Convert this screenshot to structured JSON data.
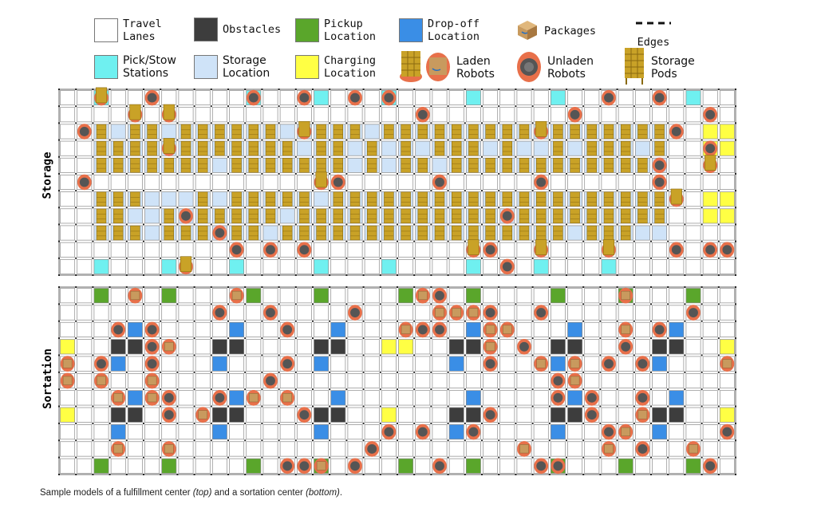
{
  "legend": {
    "items": [
      {
        "key": "travel-lanes",
        "label": "Travel\nLanes",
        "color": "#ffffff",
        "mono": true
      },
      {
        "key": "obstacles",
        "label": "Obstacles",
        "color": "#3d3d3d",
        "mono": true
      },
      {
        "key": "pickup",
        "label": "Pickup\nLocation",
        "color": "#5aa62b",
        "mono": true
      },
      {
        "key": "dropoff",
        "label": "Drop-off\nLocation",
        "color": "#3a8ee6",
        "mono": true
      },
      {
        "key": "packages",
        "label": "Packages",
        "icon": "package-icon",
        "mono": true
      },
      {
        "key": "edges",
        "label": "Edges",
        "icon": "edges-icon",
        "mono": true
      },
      {
        "key": "pick-stow",
        "label": "Pick/Stow\nStations",
        "color": "#6ff0f0",
        "mono": false
      },
      {
        "key": "storage",
        "label": "Storage\nLocation",
        "color": "#cfe3f8",
        "mono": false
      },
      {
        "key": "charging",
        "label": "Charging\nLocation",
        "color": "#ffff44",
        "mono": true
      },
      {
        "key": "laden",
        "label": "Laden\nRobots",
        "icon": "laden-robot-icon",
        "mono": false
      },
      {
        "key": "unladen",
        "label": "Unladen\nRobots",
        "icon": "unladen-robot-icon",
        "mono": false
      },
      {
        "key": "pods",
        "label": "Storage\nPods",
        "icon": "storage-pod-icon",
        "mono": false
      }
    ]
  },
  "sections": {
    "storage_label": "Storage",
    "sortation_label": "Sortation"
  },
  "caption": {
    "prefix": "Sample models of a fulfillment center ",
    "top": "(top)",
    "middle": " and a sortation center ",
    "bottom": "(bottom)",
    "suffix": "."
  },
  "colors": {
    "cell_border": "#8a8a8a",
    "pick_stow": "#6ff0f0",
    "storage": "#cfe3f8",
    "charging": "#ffff44",
    "obstacle": "#3d3d3d",
    "pickup": "#5aa62b",
    "dropoff": "#3a8ee6",
    "robot_ring": "#e8704a",
    "robot_body": "#555555",
    "pod": "#c9a227",
    "package": "#c89a5e"
  }
}
